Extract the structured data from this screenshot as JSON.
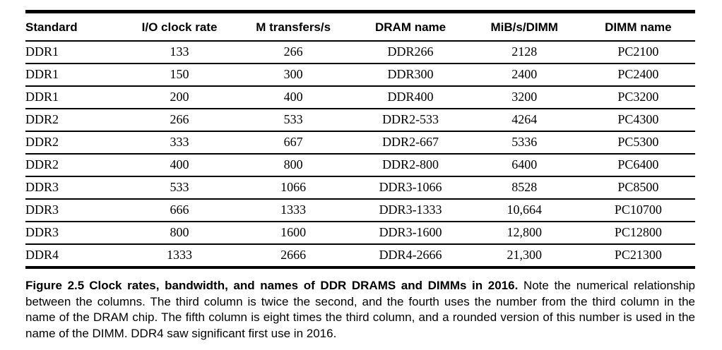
{
  "figure": {
    "table": {
      "columns": [
        "Standard",
        "I/O clock rate",
        "M transfers/s",
        "DRAM name",
        "MiB/s/DIMM",
        "DIMM name"
      ],
      "rows": [
        [
          "DDR1",
          "133",
          "266",
          "DDR266",
          "2128",
          "PC2100"
        ],
        [
          "DDR1",
          "150",
          "300",
          "DDR300",
          "2400",
          "PC2400"
        ],
        [
          "DDR1",
          "200",
          "400",
          "DDR400",
          "3200",
          "PC3200"
        ],
        [
          "DDR2",
          "266",
          "533",
          "DDR2-533",
          "4264",
          "PC4300"
        ],
        [
          "DDR2",
          "333",
          "667",
          "DDR2-667",
          "5336",
          "PC5300"
        ],
        [
          "DDR2",
          "400",
          "800",
          "DDR2-800",
          "6400",
          "PC6400"
        ],
        [
          "DDR3",
          "533",
          "1066",
          "DDR3-1066",
          "8528",
          "PC8500"
        ],
        [
          "DDR3",
          "666",
          "1333",
          "DDR3-1333",
          "10,664",
          "PC10700"
        ],
        [
          "DDR3",
          "800",
          "1600",
          "DDR3-1600",
          "12,800",
          "PC12800"
        ],
        [
          "DDR4",
          "1333",
          "2666",
          "DDR4-2666",
          "21,300",
          "PC21300"
        ]
      ]
    },
    "caption": {
      "label": "Figure 2.5",
      "title": "Clock rates, bandwidth, and names of DDR DRAMS and DIMMs in 2016.",
      "body": "Note the numerical relationship between the columns. The third column is twice the second, and the fourth uses the number from the third column in the name of the DRAM chip. The fifth column is eight times the third column, and a rounded version of this number is used in the name of the DIMM. DDR4 saw significant first use in 2016."
    },
    "colors": {
      "text": "#000000",
      "background": "#ffffff",
      "rule": "#000000"
    }
  }
}
